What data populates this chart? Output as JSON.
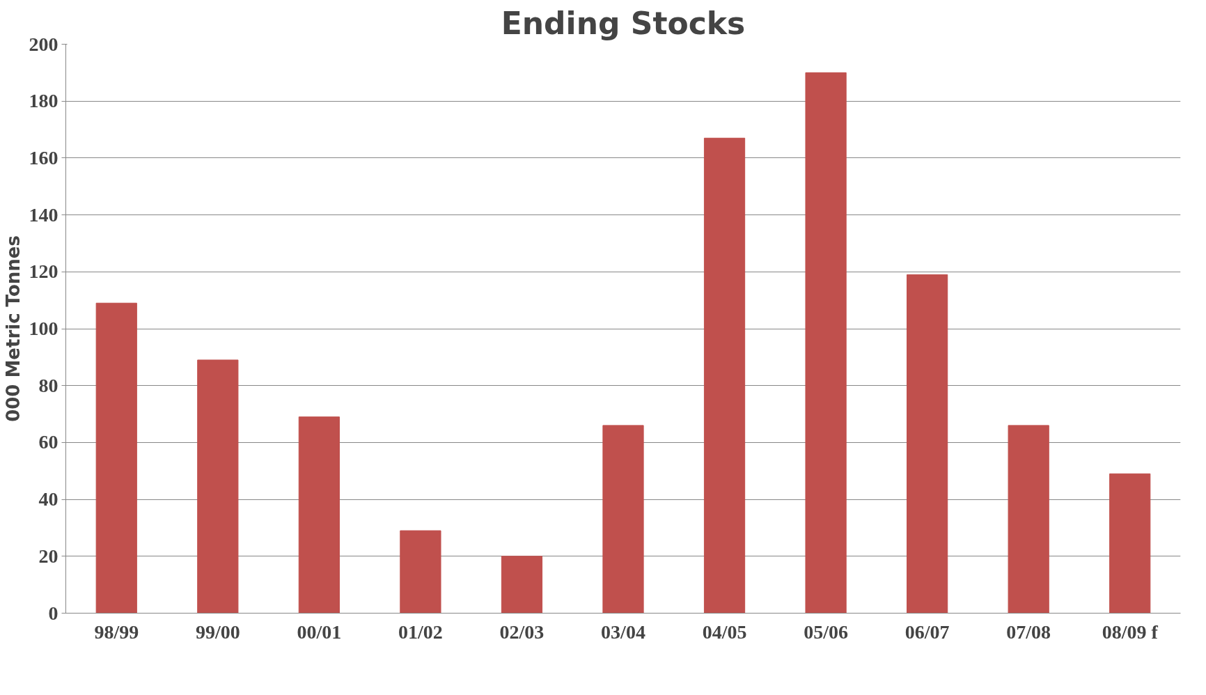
{
  "chart_data": {
    "type": "bar",
    "title": "Ending Stocks",
    "ylabel": "000 Metric Tonnes",
    "categories": [
      "98/99",
      "99/00",
      "00/01",
      "01/02",
      "02/03",
      "03/04",
      "04/05",
      "05/06",
      "06/07",
      "07/08",
      "08/09 f"
    ],
    "values": [
      109,
      89,
      69,
      29,
      20,
      66,
      167,
      190,
      119,
      66,
      49
    ],
    "color": "#c0504d",
    "ylim": [
      0,
      200
    ],
    "yticks": [
      0,
      20,
      40,
      60,
      80,
      100,
      120,
      140,
      160,
      180,
      200
    ],
    "grid": "y"
  }
}
